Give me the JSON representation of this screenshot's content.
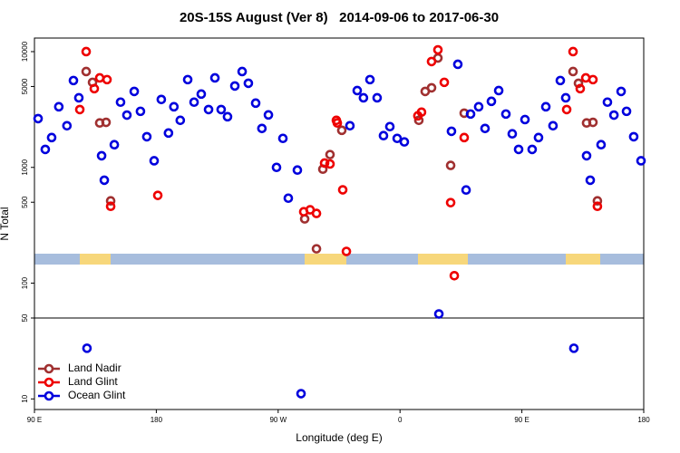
{
  "chart_data": {
    "type": "scatter",
    "title": "20S-15S August (Ver 8)   2014-09-06 to 2017-06-30",
    "xlabel": "Longitude (deg E)",
    "ylabel": "N Total",
    "xlim": [
      90,
      540
    ],
    "ylim": [
      8.1,
      13100
    ],
    "log_y": true,
    "legend": "bottomleft",
    "xticks": [
      {
        "value": 90,
        "label": "90 E"
      },
      {
        "value": 180,
        "label": "180"
      },
      {
        "value": 270,
        "label": "90 W"
      },
      {
        "value": 360,
        "label": "0"
      },
      {
        "value": 450,
        "label": "90 E"
      },
      {
        "value": 540,
        "label": "180"
      }
    ],
    "yticks": [
      10,
      50,
      100,
      500,
      1000,
      5000,
      10000
    ],
    "series": [
      {
        "name": "Land Nadir",
        "color": "#a03030",
        "x": [
          128.2,
          132.9,
          138.2,
          142.9,
          146.3,
          289.6,
          298.3,
          303,
          308.3,
          317,
          373.9,
          378.6,
          383.3,
          388,
          397.4,
          407.4,
          487.8,
          491.8,
          497.8,
          502.5,
          505.8
        ],
        "values": [
          6730,
          5430,
          2420,
          2450,
          514,
          359,
          198,
          965,
          1290,
          2090,
          2550,
          4530,
          4870,
          8810,
          1040,
          2940,
          6730,
          5330,
          2420,
          2450,
          514
        ]
      },
      {
        "name": "Land Glint",
        "color": "#ee0000",
        "x": [
          123.5,
          128.2,
          134.2,
          138.2,
          143.6,
          146.3,
          181.1,
          288.9,
          293.6,
          298.3,
          304.3,
          308.3,
          313,
          313.7,
          317.7,
          320.4,
          373.2,
          375.9,
          383.3,
          388,
          392.7,
          397.4,
          400.1,
          407.4,
          483.1,
          487.8,
          493.1,
          497.2,
          502.5,
          505.8
        ],
        "values": [
          3160,
          10000,
          4790,
          5930,
          5730,
          461,
          573,
          414,
          430,
          400,
          1090,
          1070,
          2550,
          2420,
          640,
          188,
          2790,
          3000,
          8210,
          10360,
          5430,
          496,
          116,
          1810,
          3160,
          10000,
          4790,
          5930,
          5730,
          461
        ]
      },
      {
        "name": "Ocean Glint",
        "color": "#0000dd",
        "x": [
          92.7,
          98,
          102.7,
          108,
          114,
          118.8,
          122.8,
          128.8,
          139.6,
          141.6,
          149,
          153.6,
          158.3,
          163.7,
          168.3,
          173,
          178.4,
          183.7,
          189,
          193,
          197.7,
          203.2,
          207.9,
          213.2,
          218.6,
          223.3,
          227.9,
          232.6,
          238,
          243.4,
          248,
          253.4,
          258,
          262.8,
          268.8,
          273.5,
          277.5,
          284.2,
          286.9,
          323,
          328.4,
          333,
          337.8,
          343.1,
          347.8,
          352.5,
          357.9,
          363.2,
          388.7,
          398,
          402.7,
          408.8,
          412.1,
          418.1,
          422.8,
          427.5,
          432.9,
          438.2,
          442.9,
          447.6,
          452.3,
          457.6,
          462.3,
          467.7,
          473,
          478.4,
          482.4,
          488.4,
          497.8,
          500.5,
          508.5,
          513.2,
          518,
          523.3,
          527.3,
          532.6,
          538
        ],
        "values": [
          2640,
          1430,
          1810,
          3340,
          2290,
          5630,
          3990,
          27.4,
          1260,
          775,
          1570,
          3660,
          2830,
          4530,
          3050,
          1840,
          1140,
          3860,
          1980,
          3340,
          2550,
          5730,
          3660,
          4300,
          3160,
          5930,
          3160,
          2740,
          5050,
          6730,
          5330,
          3590,
          2170,
          2840,
          1000,
          1780,
          542,
          948,
          11.1,
          2290,
          4610,
          3990,
          5730,
          3990,
          1880,
          2250,
          1780,
          1660,
          54.2,
          2050,
          7770,
          638,
          2890,
          3340,
          2170,
          3720,
          4610,
          2890,
          1950,
          1430,
          2590,
          1430,
          1810,
          3340,
          2290,
          5630,
          3990,
          27.4,
          1260,
          775,
          1570,
          3660,
          2830,
          4530,
          3050,
          1840,
          1140
        ]
      }
    ]
  }
}
